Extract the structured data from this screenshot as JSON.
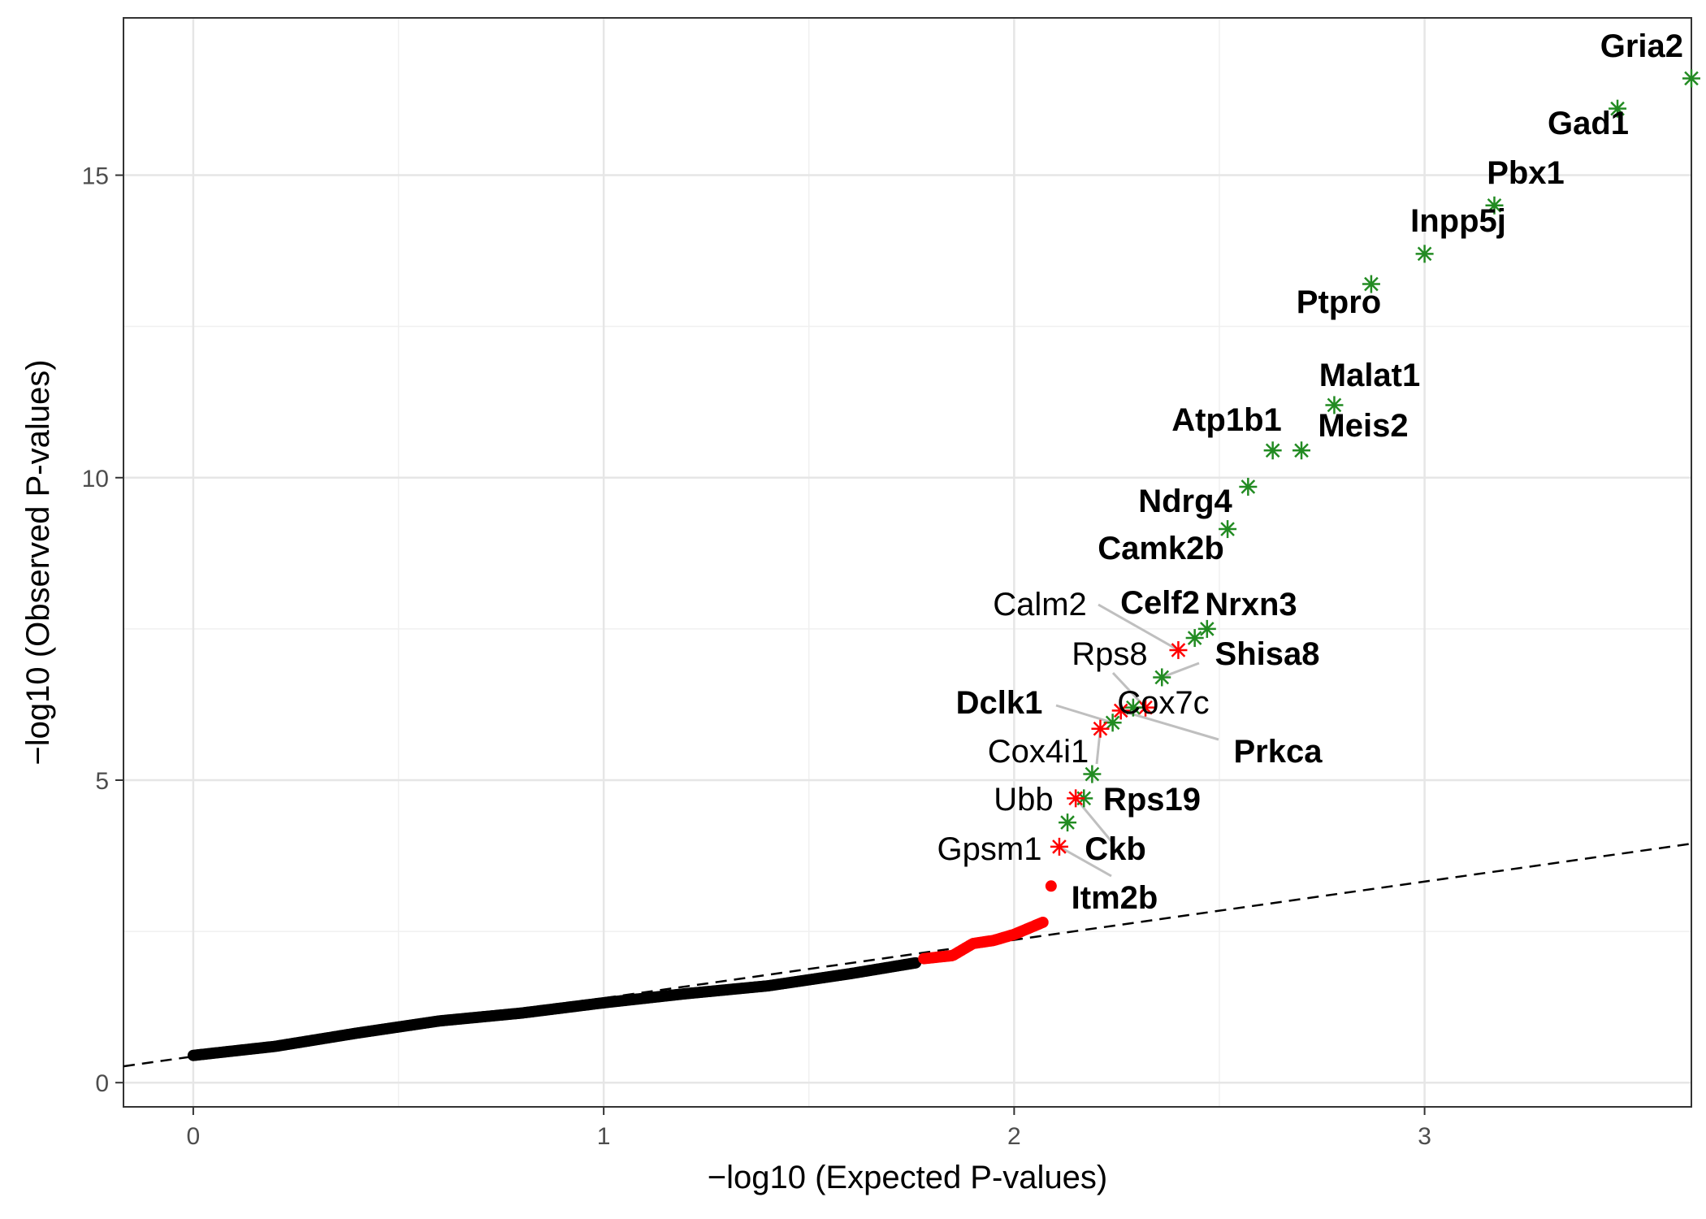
{
  "chart_data": {
    "type": "scatter",
    "xlabel": "−log10 (Expected P-values)",
    "ylabel": "−log10 (Observed P-values)",
    "xlim": [
      -0.17,
      3.65
    ],
    "ylim": [
      -0.4,
      17.6
    ],
    "x_ticks": [
      0,
      1,
      2,
      3
    ],
    "y_ticks": [
      0,
      5,
      10,
      15
    ],
    "grid": true,
    "reference_line": {
      "style": "dashed",
      "color": "#000000",
      "from": [
        -0.17,
        0.27
      ],
      "to": [
        3.65,
        3.95
      ]
    },
    "colors": {
      "black": "#000000",
      "red": "#ff0000",
      "green": "#228b22",
      "label_segment": "#bfbfbf"
    },
    "background_points": {
      "color": "#000000",
      "x_range": [
        0.0,
        1.76
      ],
      "curve": [
        [
          0.0,
          0.45
        ],
        [
          0.2,
          0.6
        ],
        [
          0.4,
          0.82
        ],
        [
          0.6,
          1.02
        ],
        [
          0.8,
          1.15
        ],
        [
          1.0,
          1.32
        ],
        [
          1.2,
          1.47
        ],
        [
          1.4,
          1.6
        ],
        [
          1.6,
          1.8
        ],
        [
          1.76,
          1.98
        ]
      ]
    },
    "significant_points": {
      "color": "#ff0000",
      "x_range": [
        1.78,
        2.07
      ],
      "curve": [
        [
          1.78,
          2.05
        ],
        [
          1.85,
          2.1
        ],
        [
          1.9,
          2.3
        ],
        [
          1.95,
          2.35
        ],
        [
          2.0,
          2.45
        ],
        [
          2.07,
          2.65
        ]
      ]
    },
    "highlighted_genes": [
      {
        "gene": "Gria2",
        "x": 3.65,
        "y": 16.6,
        "color": "green",
        "bold": true
      },
      {
        "gene": "Gad1",
        "x": 3.47,
        "y": 16.1,
        "color": "green",
        "bold": true
      },
      {
        "gene": "Pbx1",
        "x": 3.17,
        "y": 14.5,
        "color": "green",
        "bold": true
      },
      {
        "gene": "Inpp5j",
        "x": 3.0,
        "y": 13.7,
        "color": "green",
        "bold": true
      },
      {
        "gene": "Ptpro",
        "x": 2.87,
        "y": 13.2,
        "color": "green",
        "bold": true
      },
      {
        "gene": "Malat1",
        "x": 2.78,
        "y": 11.2,
        "color": "green",
        "bold": true
      },
      {
        "gene": "Meis2",
        "x": 2.7,
        "y": 10.45,
        "color": "green",
        "bold": true
      },
      {
        "gene": "Atp1b1",
        "x": 2.63,
        "y": 10.45,
        "color": "green",
        "bold": true
      },
      {
        "gene": "Ndrg4",
        "x": 2.57,
        "y": 9.85,
        "color": "green",
        "bold": true
      },
      {
        "gene": "Camk2b",
        "x": 2.52,
        "y": 9.15,
        "color": "green",
        "bold": true
      },
      {
        "gene": "Nrxn3",
        "x": 2.47,
        "y": 7.5,
        "color": "green",
        "bold": true
      },
      {
        "gene": "Celf2",
        "x": 2.44,
        "y": 7.35,
        "color": "green",
        "bold": true
      },
      {
        "gene": "Calm2",
        "x": 2.4,
        "y": 7.15,
        "color": "red",
        "bold": false
      },
      {
        "gene": "Shisa8",
        "x": 2.36,
        "y": 6.7,
        "color": "green",
        "bold": true
      },
      {
        "gene": "Rps8",
        "x": 2.32,
        "y": 6.2,
        "color": "red",
        "bold": false
      },
      {
        "gene": "Cox7c",
        "x": 2.29,
        "y": 6.2,
        "color": "green",
        "bold": false
      },
      {
        "gene": "Prkca",
        "x": 2.26,
        "y": 6.15,
        "color": "red",
        "bold": true
      },
      {
        "gene": "Dclk1",
        "x": 2.24,
        "y": 5.95,
        "color": "green",
        "bold": true
      },
      {
        "gene": "Cox4i1",
        "x": 2.21,
        "y": 5.85,
        "color": "red",
        "bold": false
      },
      {
        "gene": "Rps19",
        "x": 2.19,
        "y": 5.1,
        "color": "green",
        "bold": true
      },
      {
        "gene": "Ubb",
        "x": 2.17,
        "y": 4.7,
        "color": "green",
        "bold": false
      },
      {
        "gene": "Ckb",
        "x": 2.15,
        "y": 4.7,
        "color": "red",
        "bold": true
      },
      {
        "gene": "Gpsm1",
        "x": 2.13,
        "y": 4.3,
        "color": "green",
        "bold": false
      },
      {
        "gene": "Itm2b",
        "x": 2.11,
        "y": 3.9,
        "color": "red",
        "bold": true
      }
    ],
    "top_filled_point": {
      "x": 2.09,
      "y": 3.25,
      "color": "red"
    }
  }
}
